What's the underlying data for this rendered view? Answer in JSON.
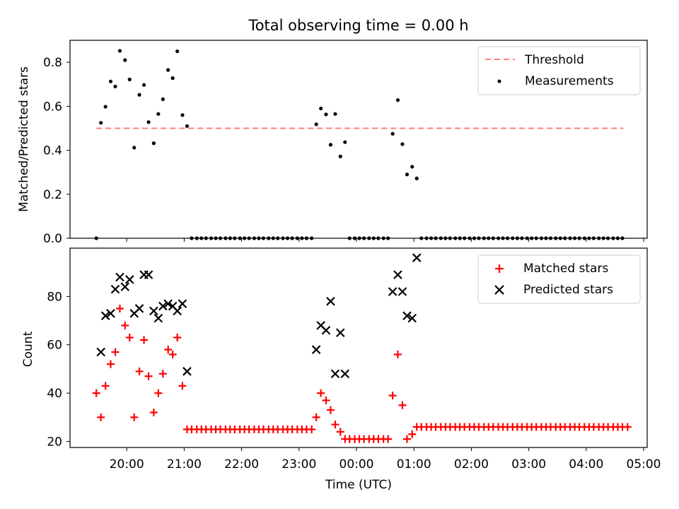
{
  "figure": {
    "title": "Total observing time = 0.00 h",
    "xlabel": "Time (UTC)",
    "x_ticks": [
      "20:00",
      "21:00",
      "22:00",
      "23:00",
      "00:00",
      "01:00",
      "02:00",
      "03:00",
      "04:00",
      "05:00"
    ]
  },
  "chart_data": [
    {
      "type": "scatter",
      "ylabel": "Matched/Predicted stars",
      "ylim": [
        0,
        0.9
      ],
      "y_ticks": [
        "0.0",
        "0.2",
        "0.4",
        "0.6",
        "0.8"
      ],
      "x_unit": "hours after 19:00 UTC",
      "legend_position": "top-right",
      "threshold": {
        "name": "Threshold",
        "value": 0.5,
        "x_range": [
          0.47,
          9.65
        ],
        "color": "#ff7f7f"
      },
      "series": [
        {
          "name": "Measurements",
          "color": "#000000",
          "points": [
            [
              0.47,
              0.0
            ],
            [
              0.55,
              0.525
            ],
            [
              0.63,
              0.598
            ],
            [
              0.72,
              0.713
            ],
            [
              0.8,
              0.69
            ],
            [
              0.88,
              0.852
            ],
            [
              0.97,
              0.81
            ],
            [
              1.05,
              0.722
            ],
            [
              1.13,
              0.412
            ],
            [
              1.22,
              0.652
            ],
            [
              1.3,
              0.697
            ],
            [
              1.38,
              0.528
            ],
            [
              1.47,
              0.432
            ],
            [
              1.55,
              0.565
            ],
            [
              1.63,
              0.632
            ],
            [
              1.72,
              0.765
            ],
            [
              1.8,
              0.728
            ],
            [
              1.88,
              0.85
            ],
            [
              1.97,
              0.56
            ],
            [
              2.05,
              0.51
            ],
            [
              2.13,
              0
            ],
            [
              2.22,
              0
            ],
            [
              2.3,
              0
            ],
            [
              2.38,
              0
            ],
            [
              2.47,
              0
            ],
            [
              2.55,
              0
            ],
            [
              2.63,
              0
            ],
            [
              2.72,
              0
            ],
            [
              2.8,
              0
            ],
            [
              2.88,
              0
            ],
            [
              2.97,
              0
            ],
            [
              3.05,
              0
            ],
            [
              3.13,
              0
            ],
            [
              3.22,
              0
            ],
            [
              3.3,
              0
            ],
            [
              3.38,
              0
            ],
            [
              3.47,
              0
            ],
            [
              3.55,
              0
            ],
            [
              3.63,
              0
            ],
            [
              3.72,
              0
            ],
            [
              3.8,
              0
            ],
            [
              3.88,
              0
            ],
            [
              3.97,
              0
            ],
            [
              4.05,
              0
            ],
            [
              4.13,
              0
            ],
            [
              4.22,
              0
            ],
            [
              4.3,
              0.518
            ],
            [
              4.38,
              0.59
            ],
            [
              4.47,
              0.563
            ],
            [
              4.55,
              0.425
            ],
            [
              4.63,
              0.565
            ],
            [
              4.72,
              0.372
            ],
            [
              4.8,
              0.437
            ],
            [
              4.88,
              0
            ],
            [
              4.97,
              0
            ],
            [
              5.05,
              0
            ],
            [
              5.13,
              0
            ],
            [
              5.22,
              0
            ],
            [
              5.3,
              0
            ],
            [
              5.38,
              0
            ],
            [
              5.47,
              0
            ],
            [
              5.55,
              0
            ],
            [
              5.63,
              0.475
            ],
            [
              5.72,
              0.628
            ],
            [
              5.8,
              0.428
            ],
            [
              5.88,
              0.29
            ],
            [
              5.97,
              0.325
            ],
            [
              6.05,
              0.272
            ],
            [
              6.13,
              0
            ],
            [
              6.22,
              0
            ],
            [
              6.3,
              0
            ],
            [
              6.38,
              0
            ],
            [
              6.47,
              0
            ],
            [
              6.55,
              0
            ],
            [
              6.63,
              0
            ],
            [
              6.72,
              0
            ],
            [
              6.8,
              0
            ],
            [
              6.88,
              0
            ],
            [
              6.97,
              0
            ],
            [
              7.05,
              0
            ],
            [
              7.13,
              0
            ],
            [
              7.22,
              0
            ],
            [
              7.3,
              0
            ],
            [
              7.38,
              0
            ],
            [
              7.47,
              0
            ],
            [
              7.55,
              0
            ],
            [
              7.63,
              0
            ],
            [
              7.72,
              0
            ],
            [
              7.8,
              0
            ],
            [
              7.88,
              0
            ],
            [
              7.97,
              0
            ],
            [
              8.05,
              0
            ],
            [
              8.13,
              0
            ],
            [
              8.22,
              0
            ],
            [
              8.3,
              0
            ],
            [
              8.38,
              0
            ],
            [
              8.47,
              0
            ],
            [
              8.55,
              0
            ],
            [
              8.63,
              0
            ],
            [
              8.72,
              0
            ],
            [
              8.8,
              0
            ],
            [
              8.88,
              0
            ],
            [
              8.97,
              0
            ],
            [
              9.05,
              0
            ],
            [
              9.13,
              0
            ],
            [
              9.22,
              0
            ],
            [
              9.3,
              0
            ],
            [
              9.38,
              0
            ],
            [
              9.47,
              0
            ],
            [
              9.55,
              0
            ],
            [
              9.63,
              0
            ]
          ]
        }
      ]
    },
    {
      "type": "scatter",
      "ylabel": "Count",
      "ylim": [
        17.5,
        100
      ],
      "y_ticks": [
        "20",
        "40",
        "60",
        "80"
      ],
      "x_unit": "hours after 19:00 UTC",
      "legend_position": "top-right",
      "series": [
        {
          "name": "Matched stars",
          "marker": "plus",
          "color": "#ff0000",
          "points": [
            [
              0.47,
              40
            ],
            [
              0.55,
              30
            ],
            [
              0.63,
              43
            ],
            [
              0.72,
              52
            ],
            [
              0.8,
              57
            ],
            [
              0.88,
              75
            ],
            [
              0.97,
              68
            ],
            [
              1.05,
              63
            ],
            [
              1.13,
              30
            ],
            [
              1.22,
              49
            ],
            [
              1.3,
              62
            ],
            [
              1.38,
              47
            ],
            [
              1.47,
              32
            ],
            [
              1.55,
              40
            ],
            [
              1.63,
              48
            ],
            [
              1.72,
              58
            ],
            [
              1.8,
              56
            ],
            [
              1.88,
              63
            ],
            [
              1.97,
              43
            ],
            [
              2.05,
              25
            ],
            [
              2.13,
              25
            ],
            [
              2.22,
              25
            ],
            [
              2.3,
              25
            ],
            [
              2.38,
              25
            ],
            [
              2.47,
              25
            ],
            [
              2.55,
              25
            ],
            [
              2.63,
              25
            ],
            [
              2.72,
              25
            ],
            [
              2.8,
              25
            ],
            [
              2.88,
              25
            ],
            [
              2.97,
              25
            ],
            [
              3.05,
              25
            ],
            [
              3.13,
              25
            ],
            [
              3.22,
              25
            ],
            [
              3.3,
              25
            ],
            [
              3.38,
              25
            ],
            [
              3.47,
              25
            ],
            [
              3.55,
              25
            ],
            [
              3.63,
              25
            ],
            [
              3.72,
              25
            ],
            [
              3.8,
              25
            ],
            [
              3.88,
              25
            ],
            [
              3.97,
              25
            ],
            [
              4.05,
              25
            ],
            [
              4.13,
              25
            ],
            [
              4.22,
              25
            ],
            [
              4.3,
              30
            ],
            [
              4.38,
              40
            ],
            [
              4.47,
              37
            ],
            [
              4.55,
              33
            ],
            [
              4.63,
              27
            ],
            [
              4.72,
              24
            ],
            [
              4.8,
              21
            ],
            [
              4.88,
              21
            ],
            [
              4.97,
              21
            ],
            [
              5.05,
              21
            ],
            [
              5.13,
              21
            ],
            [
              5.22,
              21
            ],
            [
              5.3,
              21
            ],
            [
              5.38,
              21
            ],
            [
              5.47,
              21
            ],
            [
              5.55,
              21
            ],
            [
              5.63,
              39
            ],
            [
              5.72,
              56
            ],
            [
              5.8,
              35
            ],
            [
              5.88,
              21
            ],
            [
              5.97,
              23
            ],
            [
              6.05,
              26
            ],
            [
              6.13,
              26
            ],
            [
              6.22,
              26
            ],
            [
              6.3,
              26
            ],
            [
              6.38,
              26
            ],
            [
              6.47,
              26
            ],
            [
              6.55,
              26
            ],
            [
              6.63,
              26
            ],
            [
              6.72,
              26
            ],
            [
              6.8,
              26
            ],
            [
              6.88,
              26
            ],
            [
              6.97,
              26
            ],
            [
              7.05,
              26
            ],
            [
              7.13,
              26
            ],
            [
              7.22,
              26
            ],
            [
              7.3,
              26
            ],
            [
              7.38,
              26
            ],
            [
              7.47,
              26
            ],
            [
              7.55,
              26
            ],
            [
              7.63,
              26
            ],
            [
              7.72,
              26
            ],
            [
              7.8,
              26
            ],
            [
              7.88,
              26
            ],
            [
              7.97,
              26
            ],
            [
              8.05,
              26
            ],
            [
              8.13,
              26
            ],
            [
              8.22,
              26
            ],
            [
              8.3,
              26
            ],
            [
              8.38,
              26
            ],
            [
              8.47,
              26
            ],
            [
              8.55,
              26
            ],
            [
              8.63,
              26
            ],
            [
              8.72,
              26
            ],
            [
              8.8,
              26
            ],
            [
              8.88,
              26
            ],
            [
              8.97,
              26
            ],
            [
              9.05,
              26
            ],
            [
              9.13,
              26
            ],
            [
              9.22,
              26
            ],
            [
              9.3,
              26
            ],
            [
              9.38,
              26
            ],
            [
              9.47,
              26
            ],
            [
              9.55,
              26
            ],
            [
              9.63,
              26
            ],
            [
              9.72,
              26
            ]
          ]
        },
        {
          "name": "Predicted stars",
          "marker": "x",
          "color": "#000000",
          "points": [
            [
              0.55,
              57
            ],
            [
              0.63,
              72
            ],
            [
              0.72,
              73
            ],
            [
              0.8,
              83
            ],
            [
              0.88,
              88
            ],
            [
              0.97,
              84
            ],
            [
              1.05,
              87
            ],
            [
              1.13,
              73
            ],
            [
              1.22,
              75
            ],
            [
              1.3,
              89
            ],
            [
              1.38,
              89
            ],
            [
              1.47,
              74
            ],
            [
              1.55,
              71
            ],
            [
              1.63,
              76
            ],
            [
              1.72,
              77
            ],
            [
              1.8,
              76
            ],
            [
              1.88,
              74
            ],
            [
              1.97,
              77
            ],
            [
              2.05,
              49
            ],
            [
              4.3,
              58
            ],
            [
              4.38,
              68
            ],
            [
              4.47,
              66
            ],
            [
              4.55,
              78
            ],
            [
              4.63,
              48
            ],
            [
              4.72,
              65
            ],
            [
              4.8,
              48
            ],
            [
              5.63,
              82
            ],
            [
              5.72,
              89
            ],
            [
              5.8,
              82
            ],
            [
              5.88,
              72
            ],
            [
              5.97,
              71
            ],
            [
              6.05,
              96
            ]
          ]
        }
      ]
    }
  ]
}
